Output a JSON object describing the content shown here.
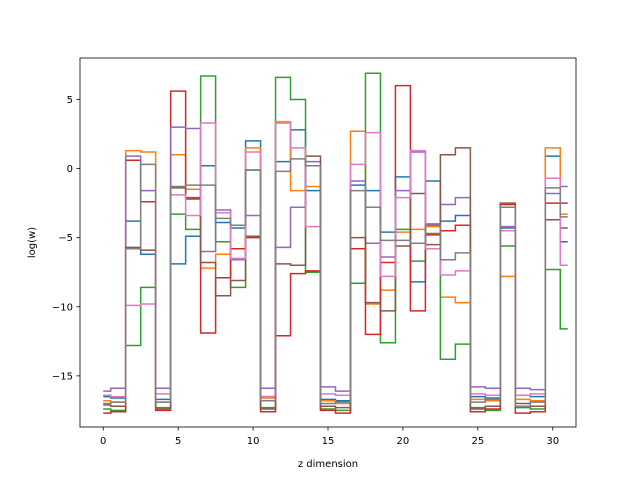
{
  "chart_data": {
    "type": "line",
    "drawstyle": "steps-mid",
    "xlabel": "z dimension",
    "ylabel": "log(w)",
    "xlim": [
      -1.55,
      31.55
    ],
    "ylim": [
      -18.7,
      8.0
    ],
    "xticks": [
      0,
      5,
      10,
      15,
      20,
      25,
      30
    ],
    "yticks": [
      -15,
      -10,
      -5,
      0,
      5
    ],
    "grid": false,
    "legend": "none",
    "x": [
      0,
      1,
      2,
      3,
      4,
      5,
      6,
      7,
      8,
      9,
      10,
      11,
      12,
      13,
      14,
      15,
      16,
      17,
      18,
      19,
      20,
      21,
      22,
      23,
      24,
      25,
      26,
      27,
      28,
      29,
      30,
      31
    ],
    "series": [
      {
        "color": "#1f77b4",
        "values": [
          -16.5,
          -16.6,
          -3.8,
          -6.2,
          -16.7,
          -6.9,
          -4.9,
          0.2,
          -3.9,
          -4.3,
          2.0,
          -16.5,
          0.5,
          2.8,
          -1.6,
          -16.7,
          -16.8,
          -1.2,
          -1.6,
          -4.6,
          -0.6,
          -8.2,
          -0.9,
          -3.8,
          -3.4,
          -16.5,
          -16.6,
          -4.3,
          -16.4,
          -16.5,
          0.9,
          -5.3
        ]
      },
      {
        "color": "#ff7f0e",
        "values": [
          -16.8,
          -16.9,
          1.3,
          1.2,
          -16.9,
          1.0,
          -1.5,
          -7.2,
          -6.2,
          -6.6,
          1.5,
          -16.6,
          3.3,
          -1.6,
          -1.3,
          -16.8,
          -17.0,
          2.7,
          -9.8,
          -8.8,
          -4.6,
          -4.4,
          -4.2,
          -9.3,
          -9.7,
          -16.7,
          -16.8,
          -7.8,
          -16.7,
          -16.8,
          1.5,
          -3.3
        ]
      },
      {
        "color": "#2ca02c",
        "values": [
          -17.4,
          -17.5,
          -12.8,
          -8.6,
          -17.3,
          -3.3,
          -4.4,
          6.7,
          -5.3,
          -8.6,
          -0.1,
          -17.3,
          6.6,
          5.0,
          -7.5,
          -17.4,
          -17.5,
          -8.3,
          6.9,
          -12.6,
          -4.4,
          -6.7,
          -4.7,
          -13.8,
          -12.7,
          -17.3,
          -17.5,
          -5.6,
          -17.3,
          -17.4,
          -7.3,
          -11.6
        ]
      },
      {
        "color": "#d62728",
        "values": [
          -17.7,
          -17.6,
          0.6,
          -2.4,
          -17.5,
          5.6,
          -2.2,
          -11.9,
          -7.9,
          -5.8,
          -5.0,
          -17.6,
          -12.1,
          -7.6,
          -7.4,
          -17.5,
          -17.7,
          -5.8,
          -12.0,
          -6.8,
          6.0,
          -10.3,
          -4.8,
          -4.5,
          -4.1,
          -17.6,
          -17.4,
          -2.6,
          -17.7,
          -17.6,
          -2.5,
          -2.5
        ]
      },
      {
        "color": "#9467bd",
        "values": [
          -16.1,
          -15.9,
          0.9,
          -1.6,
          -15.9,
          3.0,
          2.9,
          -6.0,
          -3.0,
          -6.6,
          -3.4,
          -15.9,
          -5.7,
          -2.8,
          0.5,
          -15.8,
          -16.1,
          -0.9,
          -5.4,
          -6.4,
          -1.6,
          1.2,
          -4.0,
          -2.6,
          -2.1,
          -15.8,
          -15.9,
          -4.2,
          -15.9,
          -16.0,
          -1.8,
          -1.3
        ]
      },
      {
        "color": "#8c564b",
        "values": [
          -17.1,
          -17.2,
          -5.7,
          -5.9,
          -17.4,
          -1.4,
          -2.1,
          -6.8,
          -9.2,
          -8.1,
          -4.9,
          -17.4,
          -6.9,
          -7.0,
          0.9,
          -17.2,
          -17.3,
          -5.0,
          -9.7,
          -10.3,
          -5.6,
          -1.8,
          -5.5,
          1.0,
          1.5,
          -17.4,
          -17.2,
          -2.5,
          -17.0,
          -17.2,
          -3.7,
          -4.3
        ]
      },
      {
        "color": "#e377c2",
        "values": [
          -16.4,
          -16.5,
          -9.9,
          -9.8,
          -16.3,
          -1.9,
          -3.4,
          3.3,
          -3.2,
          -6.5,
          1.2,
          -16.5,
          3.4,
          1.5,
          -4.2,
          -16.3,
          -16.4,
          0.3,
          2.6,
          -7.8,
          -2.1,
          1.3,
          -5.8,
          -7.7,
          -7.4,
          -16.3,
          -16.4,
          -4.5,
          -16.4,
          -16.3,
          -0.7,
          -7.0
        ]
      },
      {
        "color": "#7f7f7f",
        "values": [
          -17.0,
          -16.9,
          -5.8,
          0.3,
          -16.9,
          -1.3,
          -1.2,
          -1.2,
          -3.6,
          -4.1,
          -0.1,
          -16.8,
          -0.2,
          0.7,
          0.2,
          -17.0,
          -16.9,
          -1.6,
          -2.8,
          -5.2,
          -5.2,
          -5.4,
          -4.1,
          -6.6,
          -6.1,
          -16.9,
          -16.7,
          -2.8,
          -17.2,
          -16.9,
          -1.4,
          -3.5
        ]
      }
    ]
  }
}
